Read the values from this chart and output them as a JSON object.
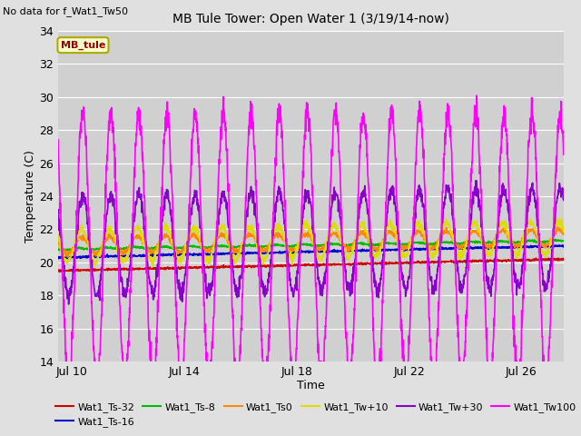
{
  "title": "MB Tule Tower: Open Water 1 (3/19/14-now)",
  "subtitle": "No data for f_Wat1_Tw50",
  "xlabel": "Time",
  "ylabel": "Temperature (C)",
  "ylim": [
    14,
    34
  ],
  "yticks": [
    14,
    16,
    18,
    20,
    22,
    24,
    26,
    28,
    30,
    32,
    34
  ],
  "xlim_days": [
    9.5,
    27.5
  ],
  "xtick_days": [
    10,
    14,
    18,
    22,
    26
  ],
  "xtick_labels": [
    "Jul 10",
    "Jul 14",
    "Jul 18",
    "Jul 22",
    "Jul 26"
  ],
  "bg_color": "#e0e0e0",
  "plot_bg_color": "#d0d0d0",
  "legend_label": "MB_tule",
  "legend_box_color": "#ffffcc",
  "legend_box_edge": "#aaaa00",
  "legend_text_color": "#990000",
  "series": [
    {
      "name": "Wat1_Ts-32",
      "color": "#cc0000",
      "lw": 1.2
    },
    {
      "name": "Wat1_Ts-16",
      "color": "#0000cc",
      "lw": 1.2
    },
    {
      "name": "Wat1_Ts-8",
      "color": "#00bb00",
      "lw": 1.2
    },
    {
      "name": "Wat1_Ts0",
      "color": "#ff8800",
      "lw": 1.2
    },
    {
      "name": "Wat1_Tw+10",
      "color": "#dddd00",
      "lw": 1.2
    },
    {
      "name": "Wat1_Tw+30",
      "color": "#8800cc",
      "lw": 1.2
    },
    {
      "name": "Wat1_Tw100",
      "color": "#ff00ff",
      "lw": 1.2
    }
  ]
}
